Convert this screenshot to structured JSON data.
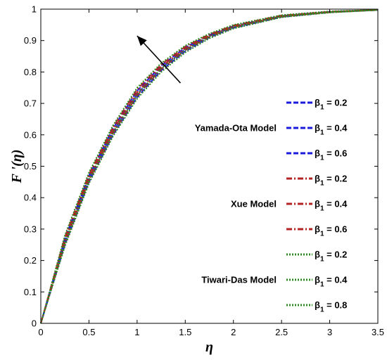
{
  "chart_data": {
    "type": "line",
    "xlabel": "η",
    "ylabel": "F '(η)",
    "xlim": [
      0,
      3.5
    ],
    "ylim": [
      0,
      1
    ],
    "xticks": [
      0,
      0.5,
      1,
      1.5,
      2,
      2.5,
      3,
      3.5
    ],
    "xtick_labels": [
      "0",
      "0.5",
      "1",
      "1.5",
      "2",
      "2.5",
      "3",
      "3.5"
    ],
    "yticks": [
      0,
      0.1,
      0.2,
      0.3,
      0.4,
      0.5,
      0.6,
      0.7,
      0.8,
      0.9,
      1
    ],
    "ytick_labels": [
      "0",
      "0.1",
      "0.2",
      "0.3",
      "0.4",
      "0.5",
      "0.6",
      "0.7",
      "0.8",
      "0.9",
      "1"
    ],
    "grid": false,
    "legend_placement": "right",
    "arrow": {
      "from": [
        1.45,
        0.765
      ],
      "to": [
        1.0,
        0.915
      ]
    },
    "groups": [
      {
        "label": "Yamada-Ota Model",
        "color": "#1a1adb",
        "style": "dashed"
      },
      {
        "label": "Xue Model",
        "color": "#b22222",
        "style": "dashdot"
      },
      {
        "label": "Tiwari-Das Model",
        "color": "#2e8b22",
        "style": "dotted"
      }
    ],
    "series": [
      {
        "name": "β1 = 0.2",
        "beta_text": "β",
        "sub": "1",
        "val": " = 0.2",
        "group": 0,
        "x": [
          0,
          0.25,
          0.5,
          0.75,
          1,
          1.25,
          1.5,
          1.75,
          2,
          2.5,
          3,
          3.5
        ],
        "y": [
          0,
          0.25,
          0.45,
          0.6,
          0.72,
          0.805,
          0.866,
          0.91,
          0.94,
          0.975,
          0.99,
          0.997
        ]
      },
      {
        "name": "β1 = 0.4",
        "beta_text": "β",
        "sub": "1",
        "val": " = 0.4",
        "group": 0,
        "x": [
          0,
          0.25,
          0.5,
          0.75,
          1,
          1.25,
          1.5,
          1.75,
          2,
          2.5,
          3,
          3.5
        ],
        "y": [
          0,
          0.26,
          0.46,
          0.61,
          0.73,
          0.813,
          0.872,
          0.914,
          0.943,
          0.977,
          0.991,
          0.997
        ]
      },
      {
        "name": "β1 = 0.6",
        "beta_text": "β",
        "sub": "1",
        "val": " = 0.6",
        "group": 0,
        "x": [
          0,
          0.25,
          0.5,
          0.75,
          1,
          1.25,
          1.5,
          1.75,
          2,
          2.5,
          3,
          3.5
        ],
        "y": [
          0,
          0.27,
          0.47,
          0.62,
          0.74,
          0.82,
          0.878,
          0.918,
          0.946,
          0.979,
          0.992,
          0.998
        ]
      },
      {
        "name": "β1 = 0.2",
        "beta_text": "β",
        "sub": "1",
        "val": " = 0.2",
        "group": 1,
        "x": [
          0,
          0.25,
          0.5,
          0.75,
          1,
          1.25,
          1.5,
          1.75,
          2,
          2.5,
          3,
          3.5
        ],
        "y": [
          0,
          0.255,
          0.455,
          0.605,
          0.725,
          0.809,
          0.869,
          0.912,
          0.942,
          0.976,
          0.99,
          0.997
        ]
      },
      {
        "name": "β1 = 0.4",
        "beta_text": "β",
        "sub": "1",
        "val": " = 0.4",
        "group": 1,
        "x": [
          0,
          0.25,
          0.5,
          0.75,
          1,
          1.25,
          1.5,
          1.75,
          2,
          2.5,
          3,
          3.5
        ],
        "y": [
          0,
          0.265,
          0.465,
          0.615,
          0.735,
          0.817,
          0.875,
          0.916,
          0.945,
          0.978,
          0.991,
          0.998
        ]
      },
      {
        "name": "β1 = 0.6",
        "beta_text": "β",
        "sub": "1",
        "val": " = 0.6",
        "group": 1,
        "x": [
          0,
          0.25,
          0.5,
          0.75,
          1,
          1.25,
          1.5,
          1.75,
          2,
          2.5,
          3,
          3.5
        ],
        "y": [
          0,
          0.275,
          0.475,
          0.625,
          0.745,
          0.824,
          0.881,
          0.92,
          0.948,
          0.98,
          0.992,
          0.998
        ]
      },
      {
        "name": "β1 = 0.2",
        "beta_text": "β",
        "sub": "1",
        "val": " = 0.2",
        "group": 2,
        "x": [
          0,
          0.25,
          0.5,
          0.75,
          1,
          1.25,
          1.5,
          1.75,
          2,
          2.5,
          3,
          3.5
        ],
        "y": [
          0,
          0.245,
          0.445,
          0.595,
          0.715,
          0.8,
          0.862,
          0.907,
          0.938,
          0.974,
          0.989,
          0.997
        ]
      },
      {
        "name": "β1 = 0.4",
        "beta_text": "β",
        "sub": "1",
        "val": " = 0.4",
        "group": 2,
        "x": [
          0,
          0.25,
          0.5,
          0.75,
          1,
          1.25,
          1.5,
          1.75,
          2,
          2.5,
          3,
          3.5
        ],
        "y": [
          0,
          0.258,
          0.458,
          0.608,
          0.728,
          0.811,
          0.87,
          0.913,
          0.943,
          0.977,
          0.99,
          0.997
        ]
      },
      {
        "name": "β1 = 0.8",
        "beta_text": "β",
        "sub": "1",
        "val": " = 0.8",
        "group": 2,
        "x": [
          0,
          0.25,
          0.5,
          0.75,
          1,
          1.25,
          1.5,
          1.75,
          2,
          2.5,
          3,
          3.5
        ],
        "y": [
          0,
          0.28,
          0.48,
          0.63,
          0.75,
          0.828,
          0.884,
          0.922,
          0.95,
          0.981,
          0.993,
          0.998
        ]
      }
    ]
  }
}
